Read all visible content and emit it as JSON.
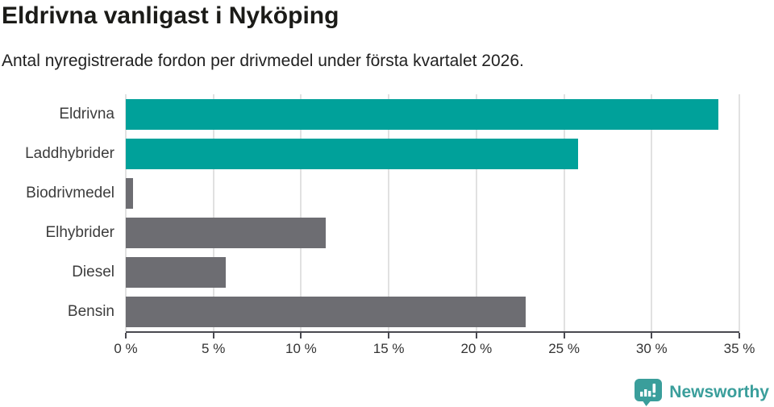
{
  "header": {
    "title": "Eldrivna vanligast i Nyköping",
    "subtitle": "Antal nyregistrerade fordon per drivmedel under första kvartalet 2026."
  },
  "chart_data": {
    "type": "bar",
    "orientation": "horizontal",
    "title": "Eldrivna vanligast i Nyköping",
    "subtitle": "Antal nyregistrerade fordon per drivmedel under första kvartalet 2026.",
    "categories": [
      "Eldrivna",
      "Laddhybrider",
      "Biodrivmedel",
      "Elhybrider",
      "Diesel",
      "Bensin"
    ],
    "values": [
      33.8,
      25.8,
      0.4,
      11.4,
      5.7,
      22.8
    ],
    "unit": "%",
    "bar_colors": [
      "#00a19a",
      "#00a19a",
      "#6d6d72",
      "#6d6d72",
      "#6d6d72",
      "#6d6d72"
    ],
    "xlim": [
      0,
      35
    ],
    "x_tick_values": [
      0,
      5,
      10,
      15,
      20,
      25,
      30,
      35
    ],
    "x_tick_labels": [
      "0 %",
      "5 %",
      "10 %",
      "15 %",
      "20 %",
      "25 %",
      "30 %",
      "35 %"
    ],
    "grid": true,
    "legend": false
  },
  "colors": {
    "highlight": "#00a19a",
    "neutral": "#6d6d72",
    "grid": "#e1e1e1",
    "axis": "#494950"
  },
  "footer": {
    "brand": "Newsworthy",
    "logo_icon": "newsworthy-bar-chart-bubble-icon",
    "brand_color": "#3a9e9b"
  }
}
